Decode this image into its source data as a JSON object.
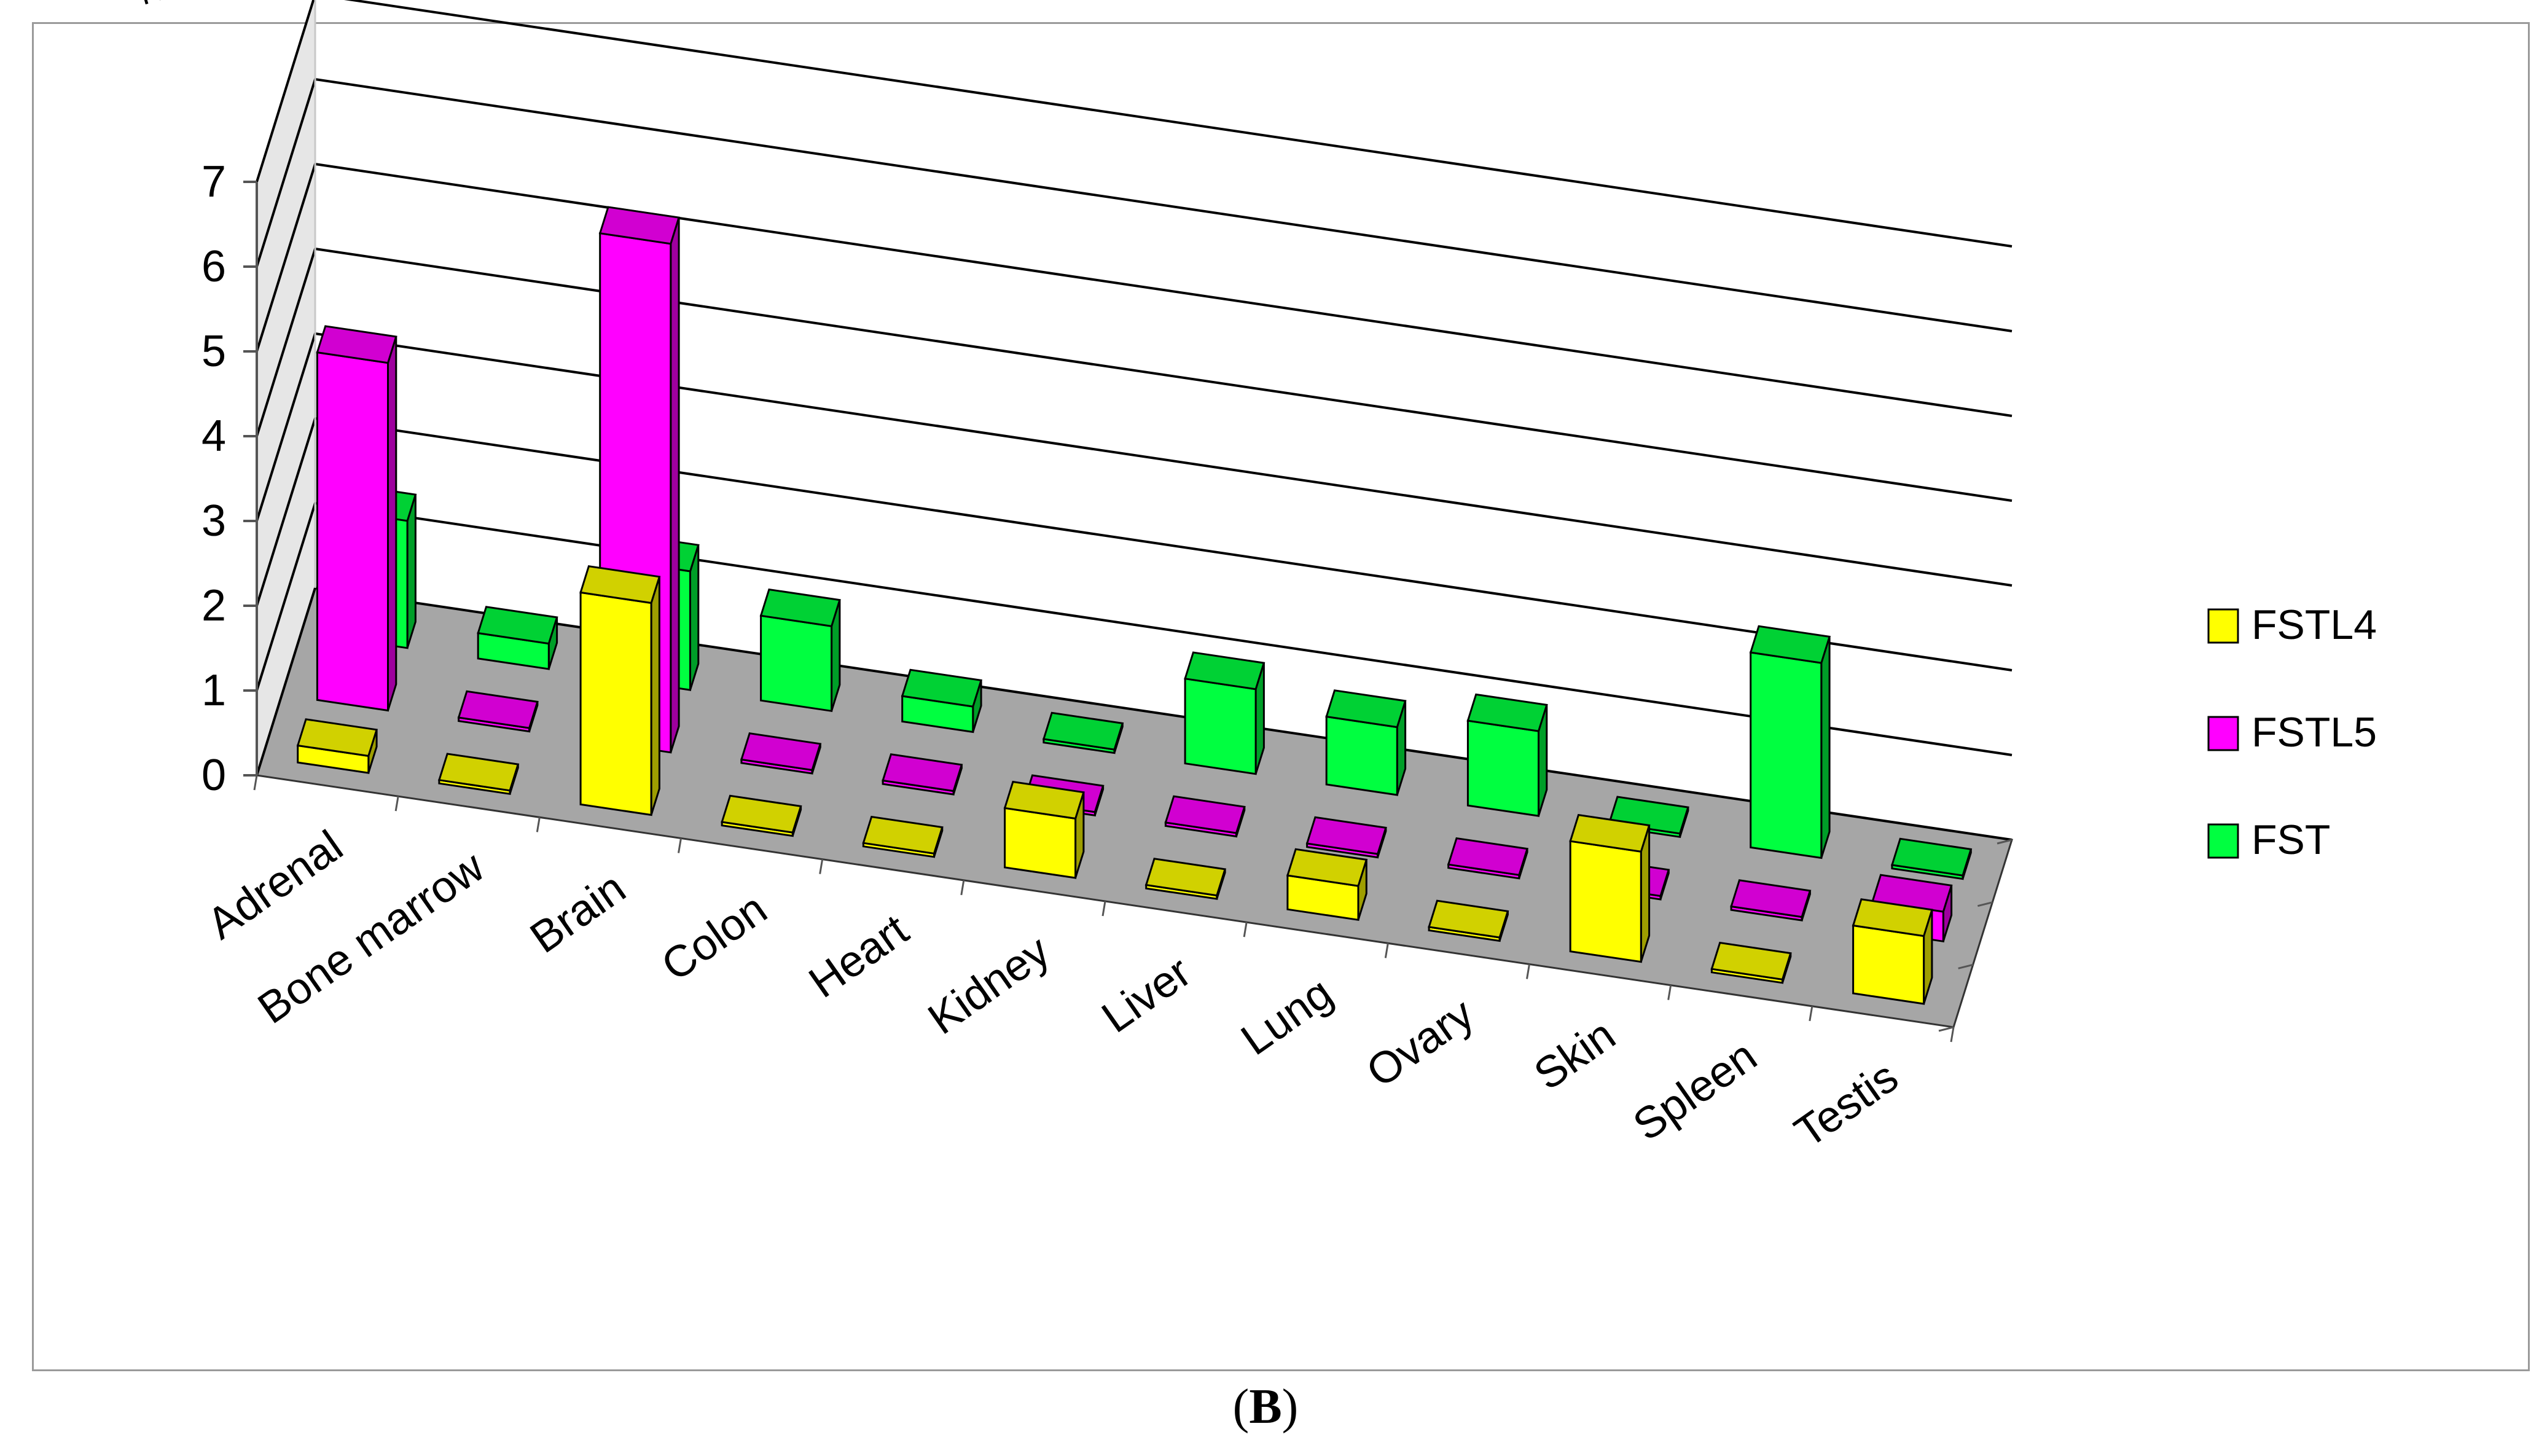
{
  "chart_data": {
    "type": "bar",
    "title": "",
    "xlabel": "",
    "ylabel": "RPKM",
    "ylim": [
      0,
      7
    ],
    "yticks": [
      "0",
      "1",
      "2",
      "3",
      "4",
      "5",
      "6",
      "7"
    ],
    "categories": [
      "Adrenal",
      "Bone marrow",
      "Brain",
      "Colon",
      "Heart",
      "Kidney",
      "Liver",
      "Lung",
      "Ovary",
      "Skin",
      "Spleen",
      "Testis"
    ],
    "series": [
      {
        "name": "FSTL4",
        "color": "#ffff00",
        "values": [
          0.2,
          0.0,
          2.5,
          0.0,
          0.0,
          0.7,
          0.0,
          0.4,
          0.0,
          1.3,
          0.0,
          0.8
        ]
      },
      {
        "name": "FSTL5",
        "color": "#ff00ff",
        "values": [
          4.1,
          0.0,
          6.0,
          0.0,
          0.0,
          0.0,
          0.0,
          0.0,
          0.0,
          0.0,
          0.0,
          0.35
        ]
      },
      {
        "name": "FST",
        "color": "#00ff40",
        "values": [
          1.5,
          0.3,
          1.4,
          1.0,
          0.3,
          0.0,
          1.0,
          0.8,
          1.0,
          0.0,
          2.3,
          0.0
        ]
      }
    ],
    "legend_position": "right",
    "grid": true,
    "projection": "3d-perspective"
  },
  "caption": {
    "label": "B"
  }
}
